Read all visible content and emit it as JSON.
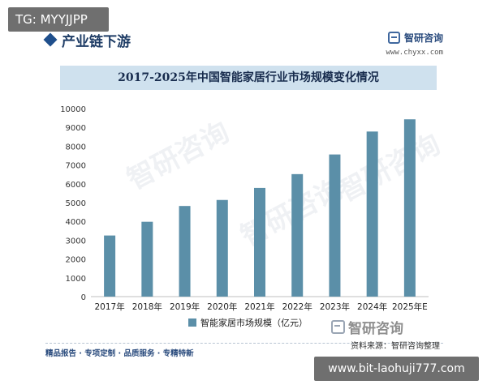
{
  "overlay": {
    "top_left_badge": "TG: MYYJJPP",
    "bottom_right_badge": "www.bit-laohuji777.com"
  },
  "header": {
    "section_title": "产业链下游",
    "brand_name": "智研咨询",
    "site_url": "www.chyxx.com"
  },
  "chart_data": {
    "type": "bar",
    "title": "2017-2025年中国智能家居行业市场规模变化情况",
    "categories": [
      "2017年",
      "2018年",
      "2019年",
      "2020年",
      "2021年",
      "2022年",
      "2023年",
      "2024年",
      "2025年E"
    ],
    "series": [
      {
        "name": "智能家居市场规模（亿元）",
        "values": [
          3250,
          3980,
          4820,
          5140,
          5780,
          6515,
          7560,
          8780,
          9430
        ]
      }
    ],
    "ylim": [
      0,
      10000
    ],
    "yticks": [
      0,
      1000,
      2000,
      3000,
      4000,
      5000,
      6000,
      7000,
      8000,
      9000,
      10000
    ],
    "xlabel": "",
    "ylabel": "",
    "grid": false,
    "legend_position": "bottom",
    "bar_color": "#5b8fa8"
  },
  "watermark_text": "智研咨询",
  "footer": {
    "tagline": "精品报告 · 专项定制 · 品质服务 · 专精特新",
    "source": "资料来源：智研咨询整理",
    "brand_name": "智研咨询"
  }
}
